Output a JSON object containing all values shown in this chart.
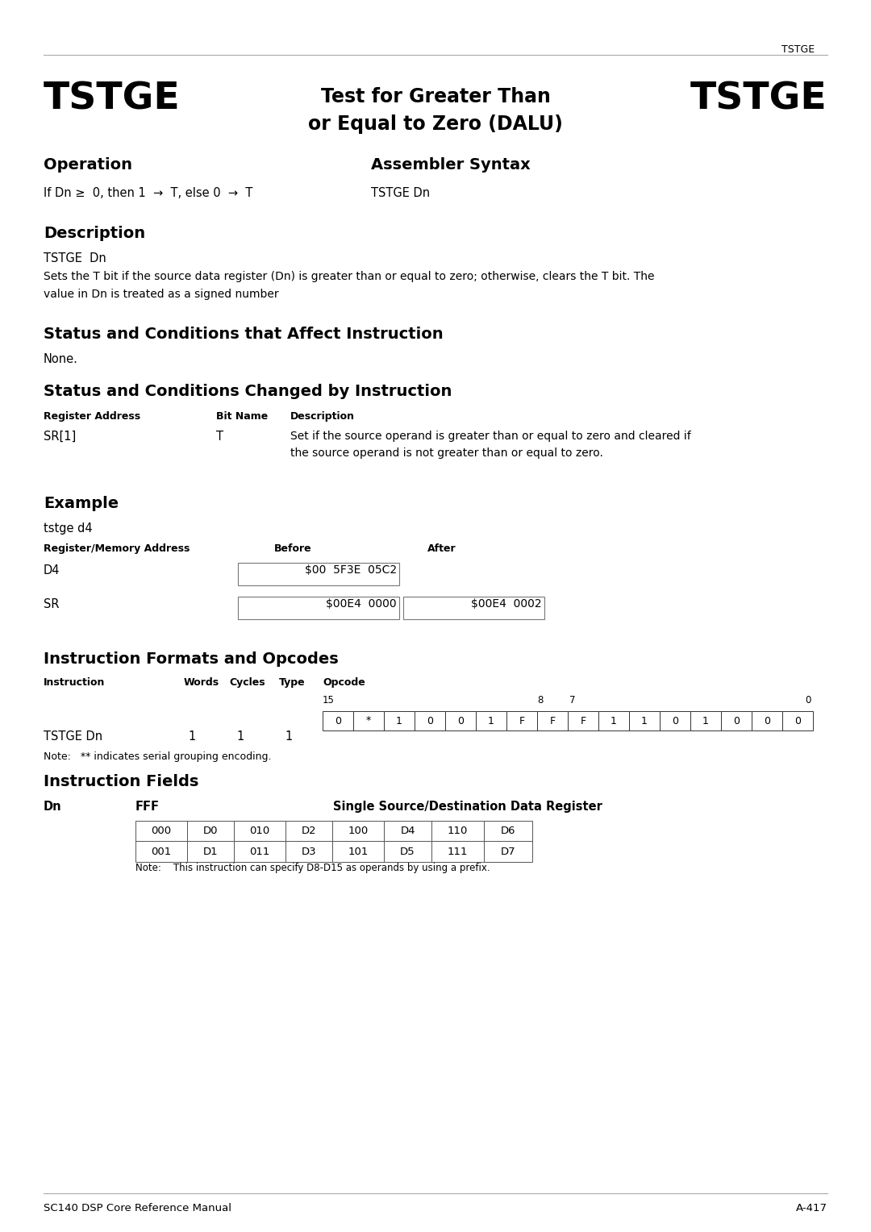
{
  "page_header": "TSTGE",
  "title_left": "TSTGE",
  "title_center": "Test for Greater Than\nor Equal to Zero (DALU)",
  "title_right": "TSTGE",
  "section_operation": "Operation",
  "section_assembler": "Assembler Syntax",
  "operation_text": "If Dn ≥  0, then 1  →  T, else 0  →  T",
  "assembler_text": "TSTGE Dn",
  "section_description": "Description",
  "desc_syntax": "TSTGE  Dn",
  "desc_body": "Sets the T bit if the source data register (Dn) is greater than or equal to zero; otherwise, clears the T bit. The\nvalue in Dn is treated as a signed number",
  "section_status_affect": "Status and Conditions that Affect Instruction",
  "status_affect_text": "None.",
  "section_status_changed": "Status and Conditions Changed by Instruction",
  "table_headers": [
    "Register Address",
    "Bit Name",
    "Description"
  ],
  "table_row_reg": "SR[1]",
  "table_row_bit": "T",
  "table_row_desc": "Set if the source operand is greater than or equal to zero and cleared if\nthe source operand is not greater than or equal to zero.",
  "section_example": "Example",
  "example_code": "tstge d4",
  "ex_hdr_reg": "Register/Memory Address",
  "ex_hdr_before": "Before",
  "ex_hdr_after": "After",
  "ex_d4": "D4",
  "ex_d4_before": "$00  5F3E  05C2",
  "ex_sr": "SR",
  "ex_sr_before": "$00E4  0000",
  "ex_sr_after": "$00E4  0002",
  "section_formats": "Instruction Formats and Opcodes",
  "fmt_hdr_instr": "Instruction",
  "fmt_hdr_words": "Words",
  "fmt_hdr_cycles": "Cycles",
  "fmt_hdr_type": "Type",
  "fmt_hdr_opcode": "Opcode",
  "fmt_row_instr": "TSTGE Dn",
  "fmt_row_words": "1",
  "fmt_row_cycles": "1",
  "fmt_row_type": "1",
  "opcode_cells": [
    "0",
    "*",
    "1",
    "0",
    "0",
    "1",
    "F",
    "F",
    "F",
    "1",
    "1",
    "0",
    "1",
    "0",
    "0",
    "0"
  ],
  "opcode_label_15": "15",
  "opcode_label_8": "8",
  "opcode_label_7": "7",
  "opcode_label_0": "0",
  "note_formats": "Note:   ** indicates serial grouping encoding.",
  "section_fields": "Instruction Fields",
  "fields_dn_lbl": "Dn",
  "fields_fff_lbl": "FFF",
  "fields_title": "Single Source/Destination Data Register",
  "fields_table": [
    [
      "000",
      "D0",
      "010",
      "D2",
      "100",
      "D4",
      "110",
      "D6"
    ],
    [
      "001",
      "D1",
      "011",
      "D3",
      "101",
      "D5",
      "111",
      "D7"
    ]
  ],
  "fields_note": "Note:    This instruction can specify D8-D15 as operands by using a prefix.",
  "footer_left": "SC140 DSP Core Reference Manual",
  "footer_right": "A-417",
  "bg_color": "#ffffff"
}
